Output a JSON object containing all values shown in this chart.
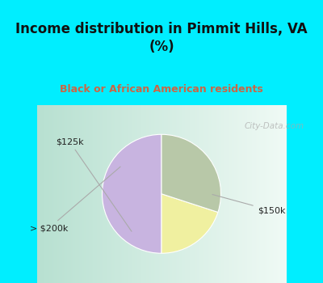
{
  "title": "Income distribution in Pimmit Hills, VA\n(%)",
  "subtitle": "Black or African American residents",
  "slices": [
    {
      "label": "$150k",
      "value": 50,
      "color": "#c8b4e0"
    },
    {
      "label": "$125k",
      "value": 20,
      "color": "#f0f0a0"
    },
    {
      "label": "> $200k",
      "value": 30,
      "color": "#b8c8a8"
    }
  ],
  "bg_cyan": "#00eeff",
  "title_color": "#111111",
  "subtitle_color": "#cc6644",
  "watermark": "City-Data.com",
  "startangle": 90,
  "chart_bg_left": "#b8ddd0",
  "chart_bg_right": "#e8f4f0"
}
